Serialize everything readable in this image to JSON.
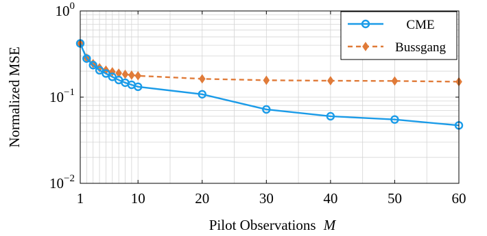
{
  "chart_data": {
    "type": "line",
    "xlabel": "Pilot Observations",
    "xlabel_symbol": "M",
    "ylabel": "Normalized MSE",
    "xlim": [
      1,
      60
    ],
    "ylim": [
      0.01,
      1
    ],
    "yscale": "log",
    "grid": true,
    "legend_position": "top-right",
    "xticks": [
      1,
      10,
      20,
      30,
      40,
      50,
      60
    ],
    "yticks": [
      {
        "value": 1,
        "base": "10",
        "exp": "0"
      },
      {
        "value": 0.1,
        "base": "10",
        "exp": "−1"
      },
      {
        "value": 0.01,
        "base": "10",
        "exp": "−2"
      }
    ],
    "series": [
      {
        "name": "CME",
        "color": "#1a9be8",
        "style": "solid",
        "marker": "circle",
        "x": [
          1,
          2,
          3,
          4,
          5,
          6,
          7,
          8,
          9,
          10,
          20,
          30,
          40,
          50,
          60
        ],
        "y": [
          0.42,
          0.28,
          0.235,
          0.205,
          0.188,
          0.172,
          0.158,
          0.147,
          0.139,
          0.132,
          0.108,
          0.072,
          0.06,
          0.055,
          0.047
        ]
      },
      {
        "name": "Bussgang",
        "color": "#e07b39",
        "style": "dashed",
        "marker": "diamond",
        "x": [
          1,
          2,
          3,
          4,
          5,
          6,
          7,
          8,
          9,
          10,
          20,
          30,
          40,
          50,
          60
        ],
        "y": [
          0.42,
          0.285,
          0.245,
          0.22,
          0.206,
          0.197,
          0.19,
          0.184,
          0.18,
          0.177,
          0.163,
          0.157,
          0.155,
          0.154,
          0.151
        ]
      }
    ]
  }
}
